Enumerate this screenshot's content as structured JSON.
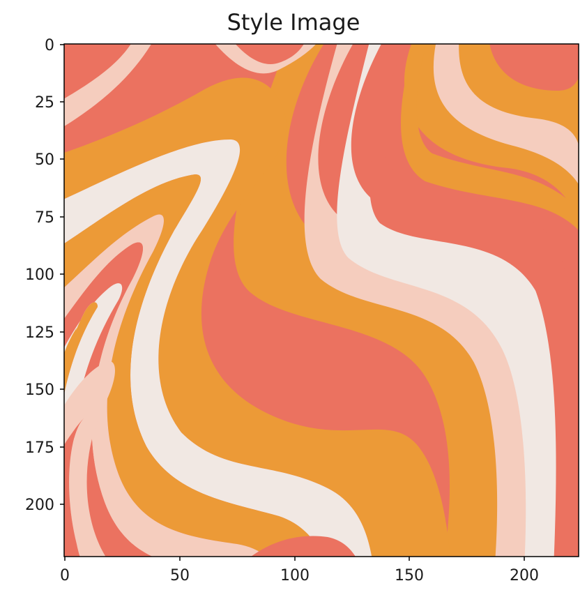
{
  "figure": {
    "title": "Style Image"
  },
  "image": {
    "description_colors": {
      "coral": "#EB7260",
      "orange": "#EC9A37",
      "pink": "#F5CDBE",
      "cream": "#F1E8E3"
    }
  },
  "axes": {
    "x_ticks": [
      "0",
      "50",
      "100",
      "150",
      "200"
    ],
    "y_ticks": [
      "0",
      "25",
      "50",
      "75",
      "100",
      "125",
      "150",
      "175",
      "200"
    ],
    "x_range": [
      0,
      224
    ],
    "y_range": [
      0,
      224
    ],
    "y_inverted": true
  }
}
